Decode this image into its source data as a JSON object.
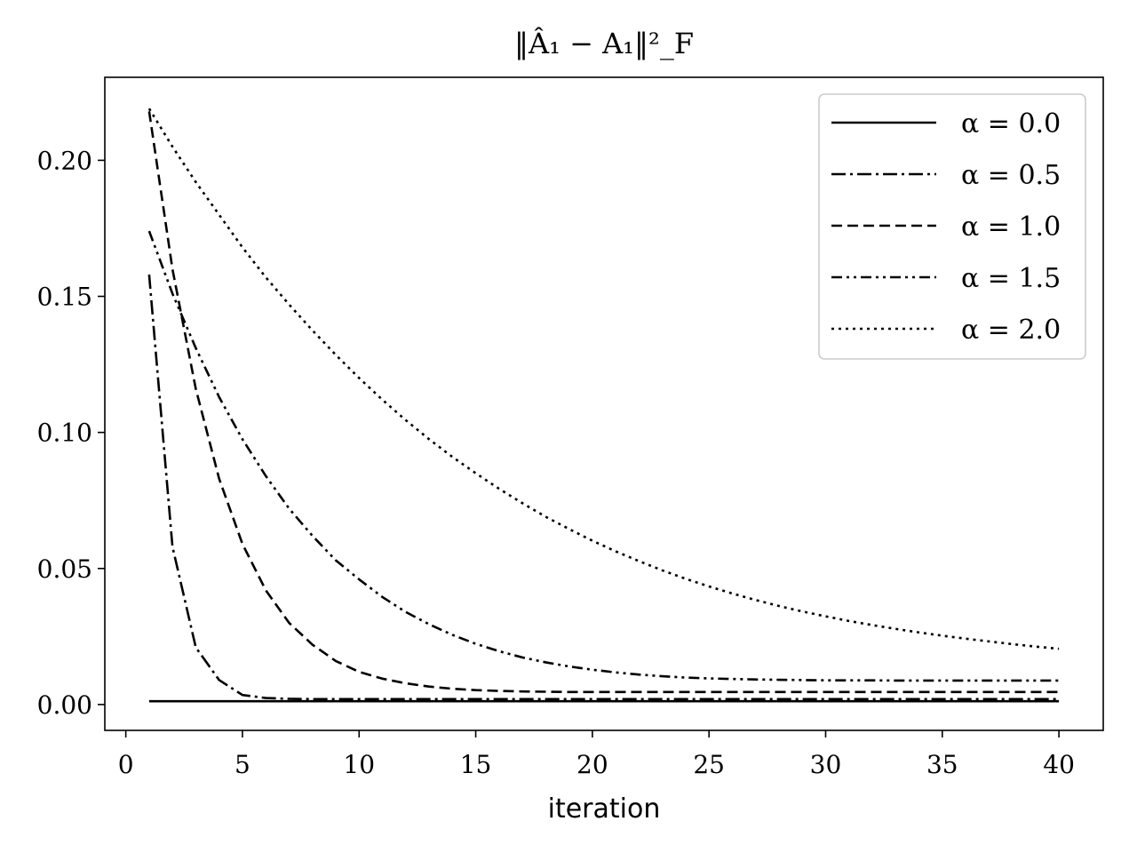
{
  "chart_data": {
    "type": "line",
    "title": "‖Â₁ − A₁‖²_F",
    "xlabel": "iteration",
    "ylabel": "",
    "xlim": [
      -0.9,
      41.9
    ],
    "ylim": [
      -0.0095,
      0.2305
    ],
    "xticks": [
      0,
      5,
      10,
      15,
      20,
      25,
      30,
      35,
      40
    ],
    "yticks": [
      0.0,
      0.05,
      0.1,
      0.15,
      0.2
    ],
    "ytick_labels": [
      "0.00",
      "0.05",
      "0.10",
      "0.15",
      "0.20"
    ],
    "grid": false,
    "legend_position": "top-right",
    "line_color": "#000000",
    "x": [
      1,
      2,
      3,
      4,
      5,
      6,
      7,
      8,
      9,
      10,
      11,
      12,
      13,
      14,
      15,
      16,
      17,
      18,
      19,
      20,
      21,
      22,
      23,
      24,
      25,
      26,
      27,
      28,
      29,
      30,
      31,
      32,
      33,
      34,
      35,
      36,
      37,
      38,
      39,
      40
    ],
    "series": [
      {
        "name": "α = 0.0",
        "style": "solid",
        "values": [
          0.0012,
          0.0012,
          0.0012,
          0.0012,
          0.0012,
          0.0012,
          0.0012,
          0.0012,
          0.0012,
          0.0012,
          0.0012,
          0.0012,
          0.0012,
          0.0012,
          0.0012,
          0.0012,
          0.0012,
          0.0012,
          0.0012,
          0.0012,
          0.0012,
          0.0012,
          0.0012,
          0.0012,
          0.0012,
          0.0012,
          0.0012,
          0.0012,
          0.0012,
          0.0012,
          0.0012,
          0.0012,
          0.0012,
          0.0012,
          0.0012,
          0.0012,
          0.0012,
          0.0012,
          0.0012,
          0.0012
        ]
      },
      {
        "name": "α = 0.5",
        "style": "dashdot",
        "values": [
          0.158,
          0.058,
          0.021,
          0.009,
          0.0035,
          0.0024,
          0.0021,
          0.002,
          0.002,
          0.002,
          0.002,
          0.002,
          0.002,
          0.002,
          0.002,
          0.002,
          0.002,
          0.002,
          0.002,
          0.002,
          0.002,
          0.002,
          0.002,
          0.002,
          0.002,
          0.002,
          0.002,
          0.002,
          0.002,
          0.002,
          0.002,
          0.002,
          0.002,
          0.002,
          0.002,
          0.002,
          0.002,
          0.002,
          0.002,
          0.002
        ]
      },
      {
        "name": "α = 1.0",
        "style": "dashed",
        "values": [
          0.218,
          0.16,
          0.116,
          0.083,
          0.059,
          0.042,
          0.03,
          0.022,
          0.016,
          0.012,
          0.0095,
          0.0078,
          0.0066,
          0.0058,
          0.0053,
          0.005,
          0.0048,
          0.0047,
          0.0046,
          0.0046,
          0.0046,
          0.0046,
          0.0046,
          0.0046,
          0.0046,
          0.0046,
          0.0046,
          0.0046,
          0.0046,
          0.0046,
          0.0046,
          0.0046,
          0.0046,
          0.0046,
          0.0046,
          0.0046,
          0.0046,
          0.0046,
          0.0046,
          0.0046
        ]
      },
      {
        "name": "α = 1.5",
        "style": "dashdotdot",
        "values": [
          0.174,
          0.151,
          0.131,
          0.113,
          0.0975,
          0.084,
          0.072,
          0.062,
          0.053,
          0.046,
          0.0395,
          0.034,
          0.0295,
          0.0256,
          0.0223,
          0.0196,
          0.0173,
          0.0155,
          0.014,
          0.0128,
          0.0118,
          0.011,
          0.0104,
          0.0099,
          0.0096,
          0.0094,
          0.0092,
          0.0091,
          0.009,
          0.0089,
          0.0089,
          0.0089,
          0.0088,
          0.0088,
          0.0088,
          0.0088,
          0.0088,
          0.0088,
          0.0088,
          0.0088
        ]
      },
      {
        "name": "α = 2.0",
        "style": "dotted",
        "values": [
          0.219,
          0.205,
          0.192,
          0.18,
          0.168,
          0.157,
          0.147,
          0.1375,
          0.1285,
          0.12,
          0.112,
          0.1045,
          0.0975,
          0.091,
          0.085,
          0.0793,
          0.074,
          0.069,
          0.0645,
          0.0602,
          0.0563,
          0.0527,
          0.0493,
          0.0462,
          0.0434,
          0.0408,
          0.0384,
          0.0362,
          0.0342,
          0.0324,
          0.0307,
          0.0292,
          0.0278,
          0.0265,
          0.0253,
          0.0242,
          0.0232,
          0.0222,
          0.0213,
          0.0205
        ]
      }
    ]
  }
}
